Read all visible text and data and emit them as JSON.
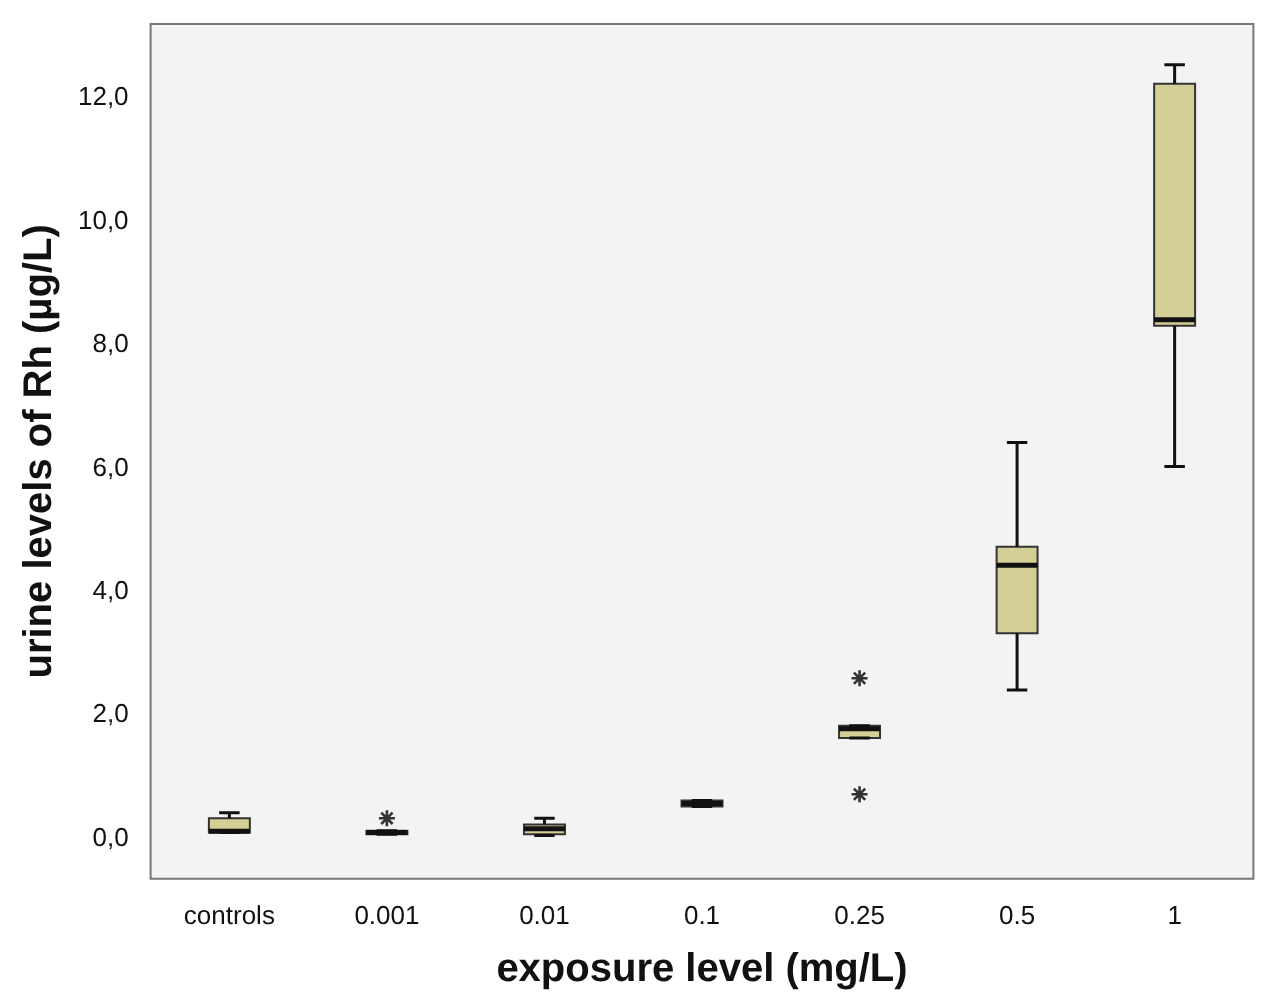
{
  "chart_data": {
    "type": "box",
    "xlabel": "exposure level (mg/L)",
    "ylabel": "urine levels of Rh (µg/L)",
    "categories": [
      "controls",
      "0.001",
      "0.01",
      "0.1",
      "0.25",
      "0.5",
      "1"
    ],
    "color": "#d3cf97",
    "boxes": [
      {
        "low": 0.1,
        "q1": 0.1,
        "median": 0.12,
        "q3": 0.33,
        "high": 0.42
      },
      {
        "low": 0.07,
        "q1": 0.07,
        "median": 0.1,
        "q3": 0.13,
        "high": 0.13,
        "outliers": [
          0.33
        ]
      },
      {
        "low": 0.05,
        "q1": 0.07,
        "median": 0.16,
        "q3": 0.23,
        "high": 0.33
      },
      {
        "low": 0.52,
        "q1": 0.52,
        "median": 0.57,
        "q3": 0.62,
        "high": 0.62
      },
      {
        "low": 1.63,
        "q1": 1.63,
        "median": 1.78,
        "q3": 1.83,
        "high": 1.83,
        "outliers": [
          2.6,
          0.72
        ]
      },
      {
        "low": 2.41,
        "q1": 3.33,
        "median": 4.43,
        "q3": 4.73,
        "high": 6.42
      },
      {
        "low": 6.03,
        "q1": 8.31,
        "median": 8.41,
        "q3": 12.23,
        "high": 12.54
      }
    ],
    "ylim": [
      -0.65,
      13.2
    ],
    "yticks": [
      {
        "value": 0,
        "label": "0,0"
      },
      {
        "value": 2,
        "label": "2,0"
      },
      {
        "value": 4,
        "label": "4,0"
      },
      {
        "value": 6,
        "label": "6,0"
      },
      {
        "value": 8,
        "label": "8,0"
      },
      {
        "value": 10,
        "label": "10,0"
      },
      {
        "value": 12,
        "label": "12,0"
      }
    ],
    "grid": false,
    "legend": false,
    "marker": "star"
  }
}
